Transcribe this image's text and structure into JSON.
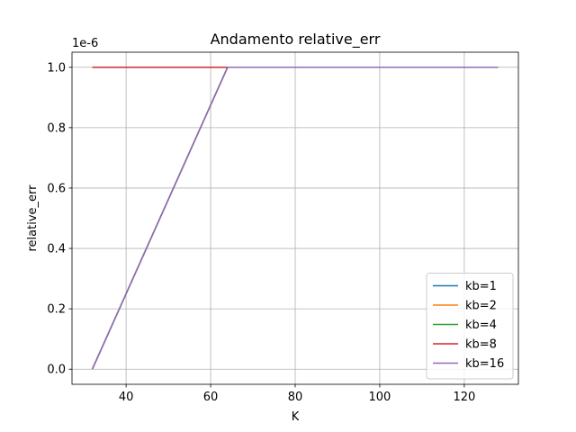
{
  "chart_data": {
    "type": "line",
    "title": "Andamento relative_err",
    "xlabel": "K",
    "ylabel": "relative_err",
    "offset_text": "1e-6",
    "x": [
      32,
      64,
      128
    ],
    "xlim": [
      27.2,
      132.8
    ],
    "ylim": [
      -0.05,
      1.05
    ],
    "xticks": [
      40,
      60,
      80,
      100,
      120
    ],
    "xtick_labels": [
      "40",
      "60",
      "80",
      "100",
      "120"
    ],
    "yticks": [
      0.0,
      0.2,
      0.4,
      0.6,
      0.8,
      1.0
    ],
    "ytick_labels": [
      "0.0",
      "0.2",
      "0.4",
      "0.6",
      "0.8",
      "1.0"
    ],
    "grid": true,
    "legend_position": "lower right",
    "series": [
      {
        "name": "kb=1",
        "color": "#1f77b4",
        "values": [
          0.0,
          1.0,
          1.0
        ]
      },
      {
        "name": "kb=2",
        "color": "#ff7f0e",
        "values": [
          0.0,
          1.0,
          1.0
        ]
      },
      {
        "name": "kb=4",
        "color": "#2ca02c",
        "values": [
          0.0,
          1.0,
          1.0
        ]
      },
      {
        "name": "kb=8",
        "color": "#d62728",
        "values": [
          1.0,
          1.0,
          1.0
        ]
      },
      {
        "name": "kb=16",
        "color": "#9467bd",
        "values": [
          0.0,
          1.0,
          1.0
        ]
      }
    ]
  }
}
